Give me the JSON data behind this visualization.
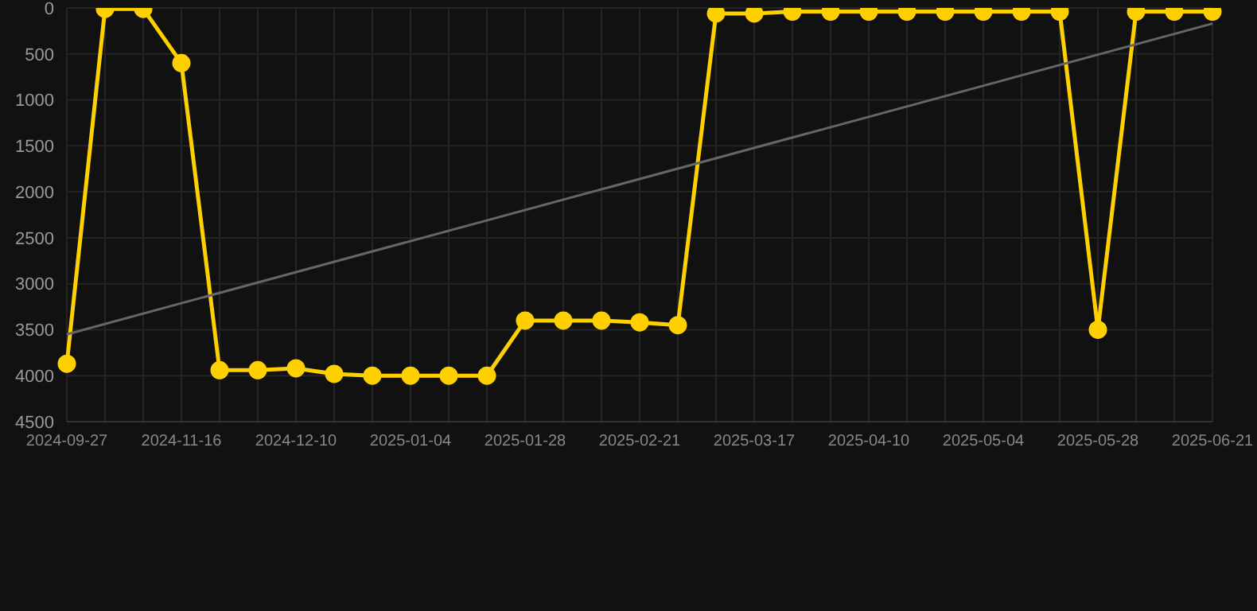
{
  "chart_data": {
    "type": "line",
    "categories": [
      "2024-09-27",
      null,
      null,
      "2024-11-16",
      null,
      null,
      "2024-12-10",
      null,
      null,
      "2025-01-04",
      null,
      null,
      "2025-01-28",
      null,
      null,
      "2025-02-21",
      null,
      null,
      "2025-03-17",
      null,
      null,
      "2025-04-10",
      null,
      null,
      "2025-05-04",
      null,
      null,
      "2025-05-28",
      null,
      null,
      "2025-06-21"
    ],
    "series": [
      {
        "type": "line",
        "color": "#ffd000",
        "marker": "circle",
        "values": [
          3870,
          10,
          10,
          600,
          3940,
          3940,
          3920,
          3980,
          4000,
          4000,
          4000,
          4000,
          3400,
          3400,
          3400,
          3420,
          3450,
          60,
          60,
          40,
          40,
          40,
          40,
          40,
          40,
          40,
          40,
          3500,
          40,
          40,
          40
        ]
      },
      {
        "type": "line",
        "color": "#666666",
        "marker": "none",
        "values": [
          3550,
          null,
          null,
          null,
          null,
          null,
          null,
          null,
          null,
          null,
          null,
          null,
          null,
          null,
          null,
          null,
          null,
          null,
          null,
          null,
          null,
          null,
          null,
          null,
          null,
          null,
          null,
          null,
          null,
          null,
          170
        ]
      }
    ],
    "ylim": [
      4500,
      0
    ],
    "yticks": [
      0,
      500,
      1000,
      1500,
      2000,
      2500,
      3000,
      3500,
      4000,
      4500
    ],
    "grid": true
  }
}
